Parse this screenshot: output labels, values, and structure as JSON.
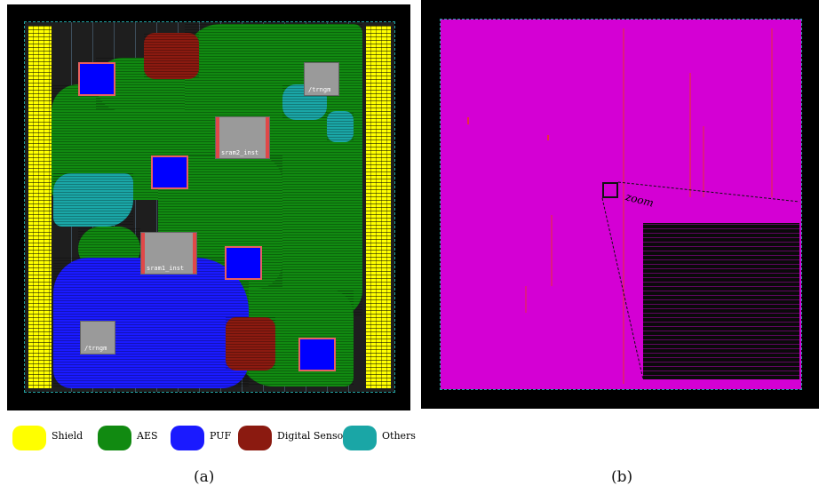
{
  "panel_a": {
    "caption": "(a)",
    "macros": {
      "trng_top": "/trngm",
      "sram2": "sram2_inst",
      "sram1": "sram1_inst",
      "trng_bottom": "/trngm"
    }
  },
  "panel_b": {
    "caption": "(b)",
    "zoom_label": "zoom"
  },
  "legend": [
    {
      "label": "Shield",
      "color": "#ffff00"
    },
    {
      "label": "AES",
      "color": "#118a11"
    },
    {
      "label": "PUF",
      "color": "#1a1aff"
    },
    {
      "label": "Digital Sensors",
      "color": "#8b1a10"
    },
    {
      "label": "Others",
      "color": "#1aa6a6"
    }
  ]
}
